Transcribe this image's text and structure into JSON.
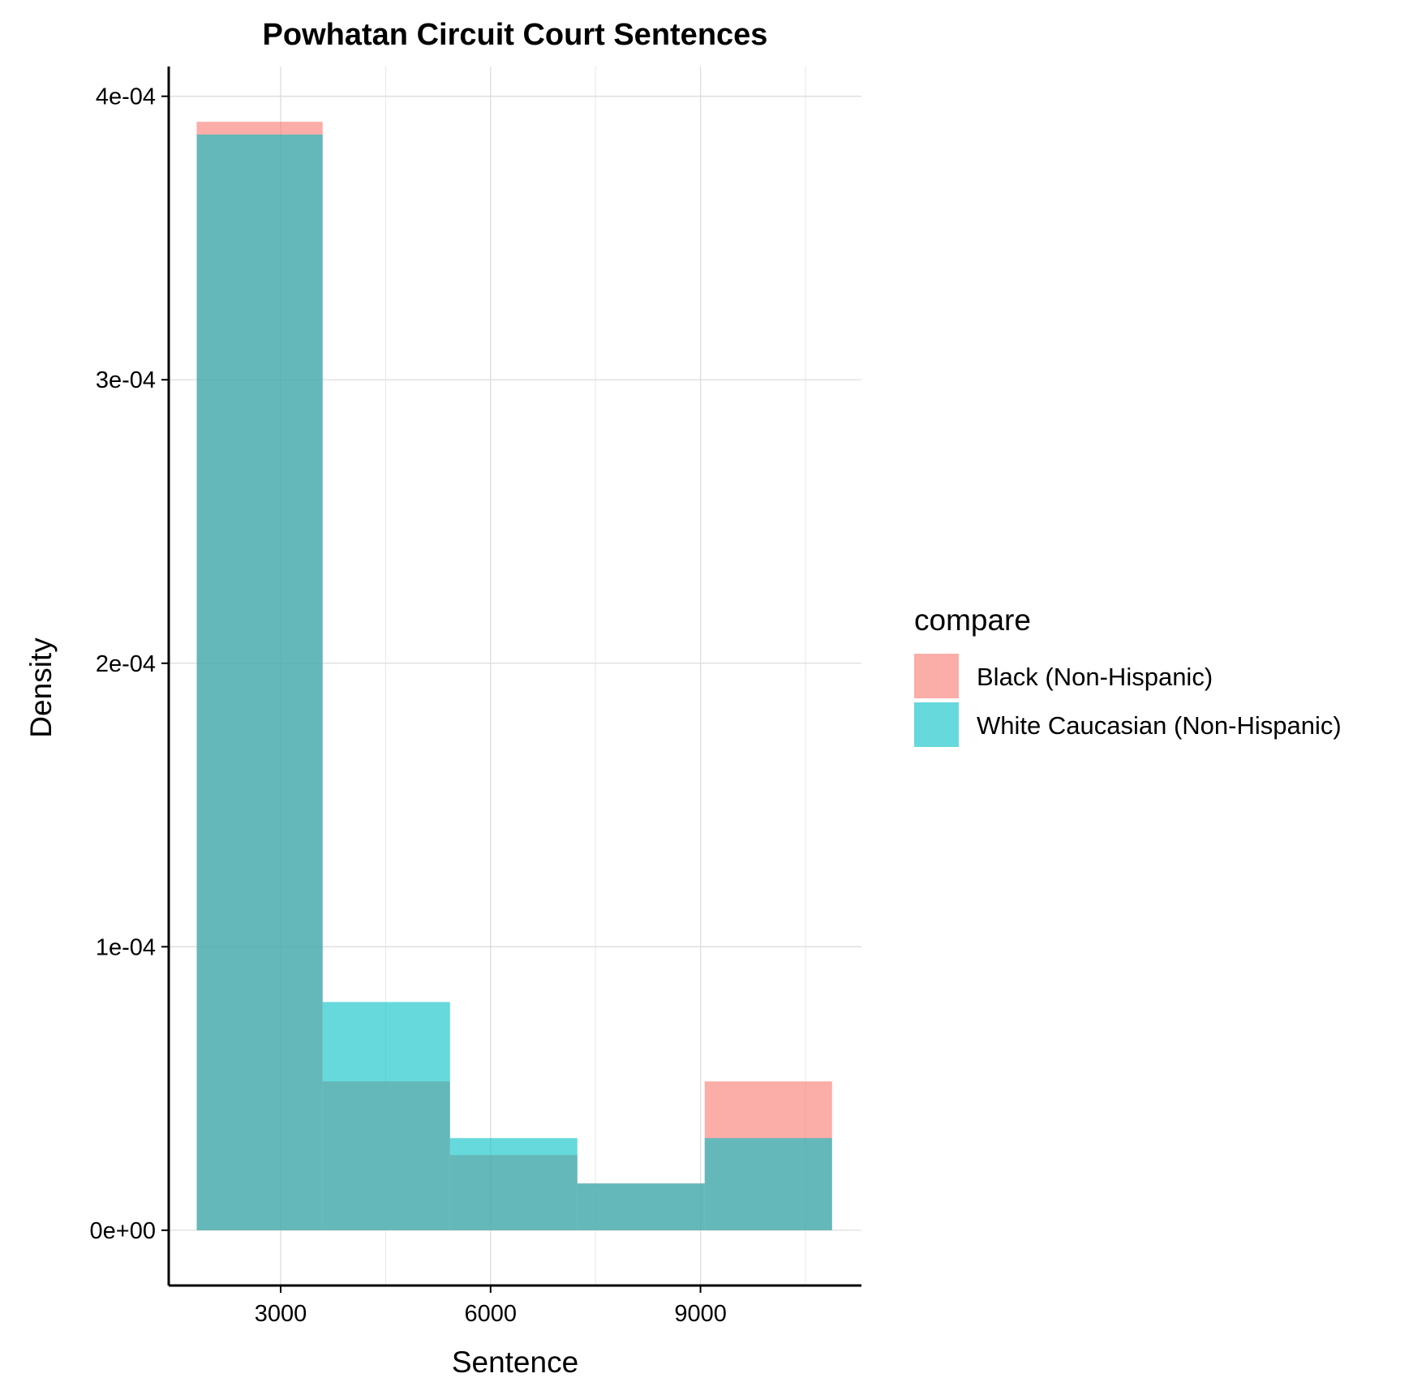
{
  "chart_data": {
    "type": "histogram",
    "title": "Powhatan Circuit Court Sentences",
    "xlabel": "Sentence",
    "ylabel": "Density",
    "xlim": [
      1400,
      11300
    ],
    "ylim": [
      -1.95e-05,
      0.0004105
    ],
    "x_ticks": [
      3000,
      6000,
      9000
    ],
    "x_tick_labels": [
      "3000",
      "6000",
      "9000"
    ],
    "x_minor_gridlines": [
      4500,
      7500,
      10500
    ],
    "y_ticks": [
      0,
      0.0001,
      0.0002,
      0.0003,
      0.0004
    ],
    "y_tick_labels": [
      "0e+00",
      "1e-04",
      "2e-04",
      "3e-04",
      "4e-04"
    ],
    "bins": [
      [
        1800,
        3600
      ],
      [
        3600,
        5420
      ],
      [
        5420,
        7240
      ],
      [
        7240,
        9060
      ],
      [
        9060,
        10880
      ]
    ],
    "grid": true,
    "legend": {
      "title": "compare",
      "position": "right"
    },
    "series": [
      {
        "name": "Black (Non-Hispanic)",
        "color": "#F8766D",
        "values": [
          0.000391,
          5.25e-05,
          2.65e-05,
          1.65e-05,
          5.25e-05
        ]
      },
      {
        "name": "White Caucasian (Non-Hispanic)",
        "color": "#00BFC4",
        "values": [
          0.0003865,
          8.05e-05,
          3.25e-05,
          1.65e-05,
          3.25e-05
        ]
      }
    ],
    "fill_opacity": 0.6
  }
}
